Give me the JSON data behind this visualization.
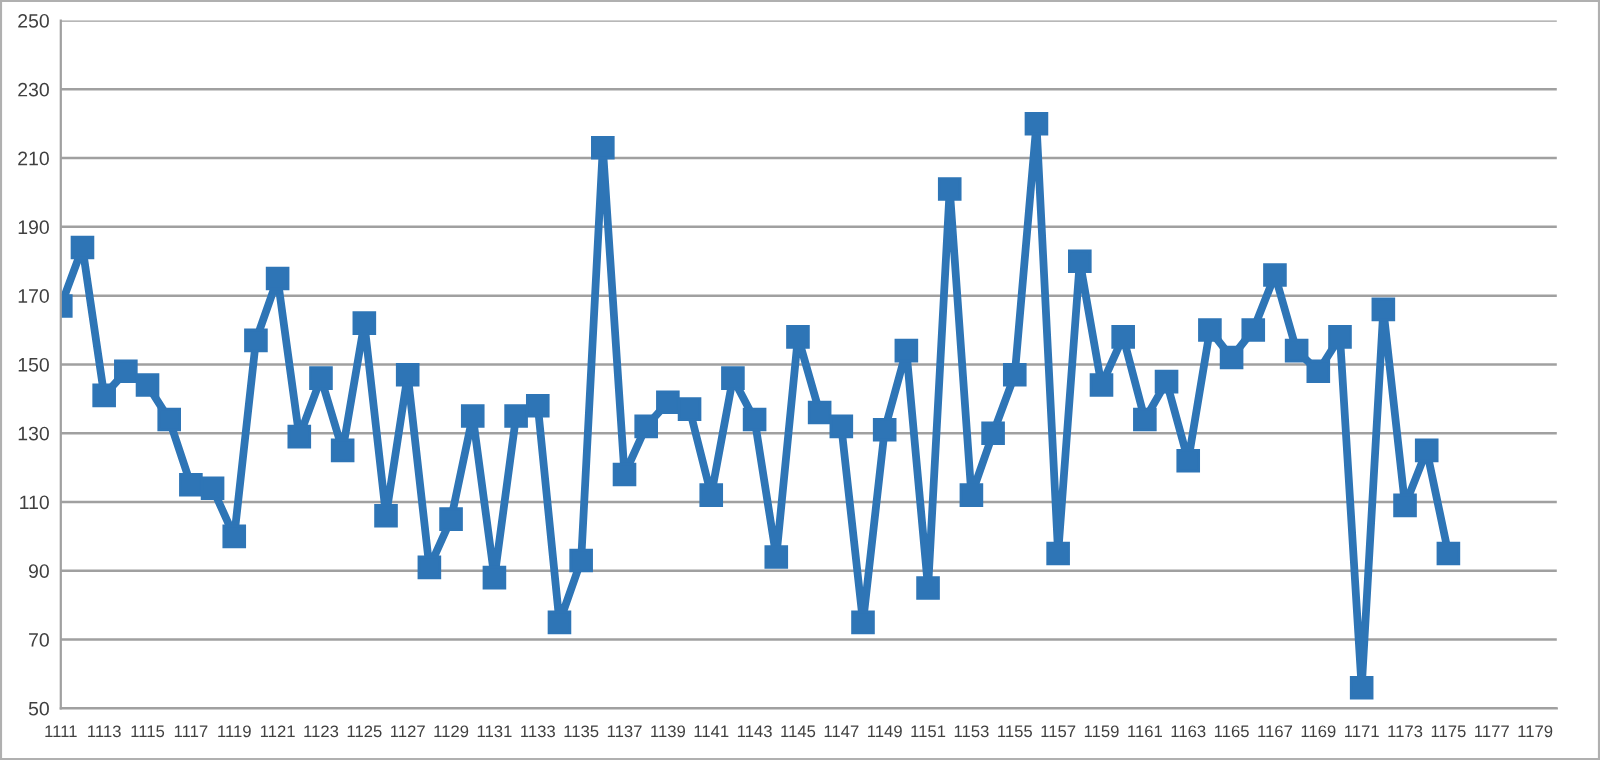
{
  "chart_data": {
    "type": "line",
    "categories": [
      "1111",
      null,
      "1113",
      null,
      "1115",
      null,
      "1117",
      null,
      "1119",
      null,
      "1121",
      null,
      "1123",
      null,
      "1125",
      null,
      "1127",
      null,
      "1129",
      null,
      "1131",
      null,
      "1133",
      null,
      "1135",
      null,
      "1137",
      null,
      "1139",
      null,
      "1141",
      null,
      "1143",
      null,
      "1145",
      null,
      "1147",
      null,
      "1149",
      null,
      "1151",
      null,
      "1153",
      null,
      "1155",
      null,
      "1157",
      null,
      "1159",
      null,
      "1161",
      null,
      "1163",
      null,
      "1165",
      null,
      "1167",
      null,
      "1169",
      null,
      "1171",
      null,
      "1173",
      null,
      "1175",
      null,
      "1177",
      null,
      "1179",
      null
    ],
    "series": [
      {
        "color": "#2e75b6",
        "values": [
          167,
          184,
          141,
          148,
          144,
          134,
          115,
          114,
          100,
          157,
          175,
          129,
          146,
          125,
          162,
          106,
          147,
          91,
          105,
          135,
          88,
          135,
          138,
          75,
          93,
          213,
          118,
          132,
          139,
          137,
          112,
          146,
          134,
          94,
          158,
          136,
          132,
          75,
          131,
          154,
          85,
          201,
          112,
          130,
          147,
          220,
          95,
          180,
          144,
          158,
          134,
          145,
          122,
          160,
          152,
          160,
          176,
          154,
          148,
          158,
          56,
          166,
          109,
          125,
          95,
          null,
          null,
          null,
          null,
          null
        ]
      }
    ],
    "ylim": [
      50,
      250
    ],
    "yticks": [
      50,
      70,
      90,
      110,
      130,
      150,
      170,
      190,
      210,
      230,
      250
    ],
    "grid": "y",
    "marker": "square",
    "line_style": "solid"
  }
}
